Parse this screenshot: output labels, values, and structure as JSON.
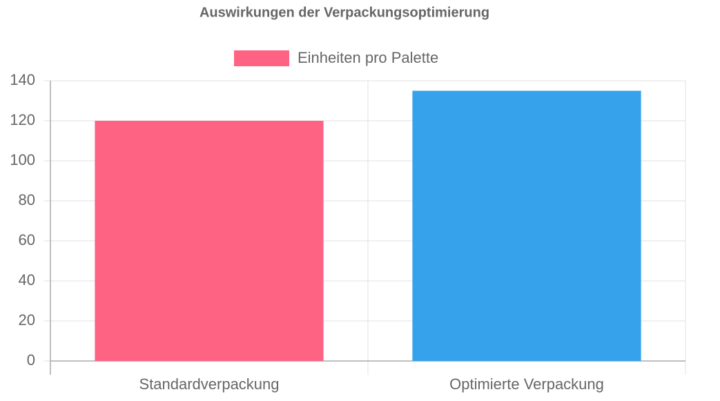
{
  "chart_data": {
    "type": "bar",
    "title": "Auswirkungen der Verpackungsoptimierung",
    "categories": [
      "Standardverpackung",
      "Optimierte Verpackung"
    ],
    "series": [
      {
        "name": "Einheiten pro Palette",
        "colors": [
          "#ff6384",
          "#36a2eb"
        ],
        "values": [
          120,
          135
        ]
      }
    ],
    "ylim": [
      0,
      140
    ],
    "yticks": [
      0,
      20,
      40,
      60,
      80,
      100,
      120,
      140
    ],
    "grid": true
  }
}
